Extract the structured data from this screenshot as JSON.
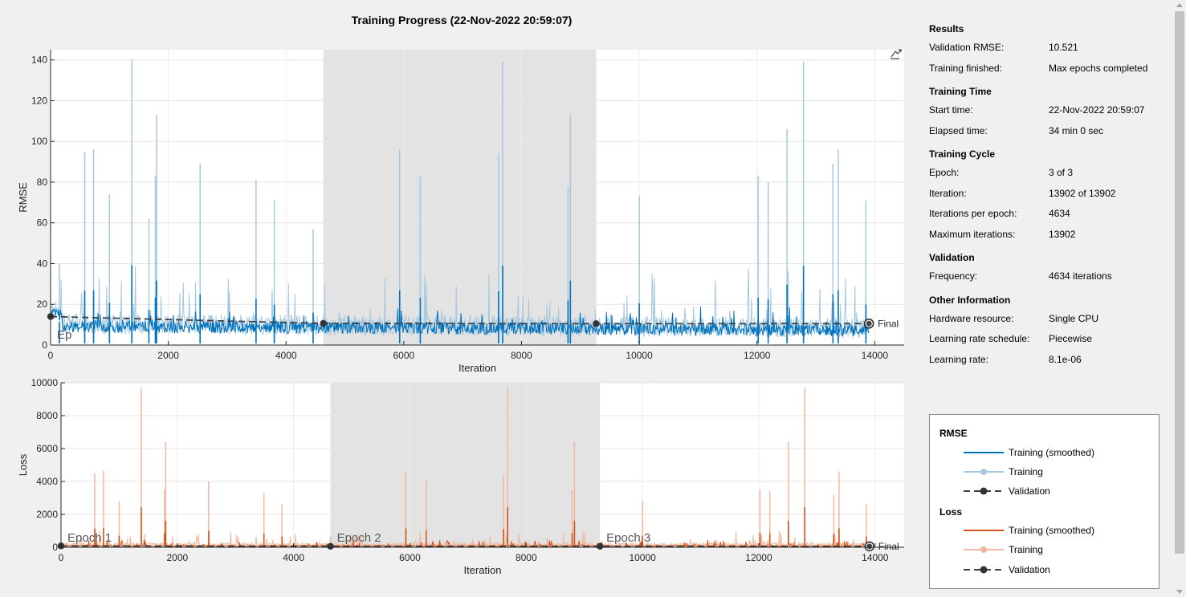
{
  "title": "Training Progress (22-Nov-2022 20:59:07)",
  "results": {
    "heading": "Results",
    "rows": [
      {
        "k": "Validation RMSE:",
        "v": "10.521"
      },
      {
        "k": "Training finished:",
        "v": "Max epochs completed"
      }
    ]
  },
  "training_time": {
    "heading": "Training Time",
    "rows": [
      {
        "k": "Start time:",
        "v": "22-Nov-2022 20:59:07"
      },
      {
        "k": "Elapsed time:",
        "v": "34 min 0 sec"
      }
    ]
  },
  "training_cycle": {
    "heading": "Training Cycle",
    "rows": [
      {
        "k": "Epoch:",
        "v": "3 of 3"
      },
      {
        "k": "Iteration:",
        "v": "13902 of 13902"
      },
      {
        "k": "Iterations per epoch:",
        "v": "4634"
      },
      {
        "k": "Maximum iterations:",
        "v": "13902"
      }
    ]
  },
  "validation": {
    "heading": "Validation",
    "rows": [
      {
        "k": "Frequency:",
        "v": "4634 iterations"
      }
    ]
  },
  "other": {
    "heading": "Other Information",
    "rows": [
      {
        "k": "Hardware resource:",
        "v": "Single CPU"
      },
      {
        "k": "Learning rate schedule:",
        "v": "Piecewise"
      },
      {
        "k": "Learning rate:",
        "v": "8.1e-06"
      }
    ]
  },
  "legend": {
    "rmse_heading": "RMSE",
    "loss_heading": "Loss",
    "rmse_items": [
      "Training (smoothed)",
      "Training",
      "Validation"
    ],
    "loss_items": [
      "Training (smoothed)",
      "Training",
      "Validation"
    ]
  },
  "colors": {
    "rmse_smoothed": "#0072bd",
    "rmse_raw": "#a6c8e0",
    "loss_smoothed": "#d95319",
    "loss_raw": "#f0b9a0",
    "validation": "#404040",
    "epoch_shade": "#e3e3e3"
  },
  "icons": {
    "export": "export-chart-icon"
  },
  "chart_data": [
    {
      "type": "line",
      "name": "rmse",
      "xlabel": "Iteration",
      "ylabel": "RMSE",
      "xlim": [
        0,
        14500
      ],
      "ylim": [
        0,
        145
      ],
      "xticks": [
        0,
        2000,
        4000,
        6000,
        8000,
        10000,
        12000,
        14000
      ],
      "yticks": [
        0,
        20,
        40,
        60,
        80,
        100,
        120,
        140
      ],
      "epoch_boundaries": [
        0,
        4634,
        9268,
        13902
      ],
      "epoch_labels": [
        "Ep",
        "",
        ""
      ],
      "final_label": "Final",
      "validation": {
        "x": [
          0,
          4634,
          9268,
          13902
        ],
        "y": [
          14,
          10.6,
          10.5,
          10.521
        ]
      },
      "spikes": {
        "x": [
          150,
          580,
          730,
          1000,
          1380,
          1780,
          1800,
          1670,
          2540,
          3490,
          3800,
          4460,
          5930,
          6280,
          7610,
          7680,
          8790,
          8830,
          10000,
          12020,
          12190,
          12510,
          12790,
          13290,
          13380,
          13850
        ],
        "y": [
          40,
          95,
          96,
          74,
          140,
          83,
          113,
          62,
          89,
          81,
          71,
          57,
          96,
          83,
          94,
          139,
          78,
          113,
          73,
          83,
          80,
          106,
          139,
          89,
          96,
          71
        ]
      },
      "smoothed_level_mean": 8
    },
    {
      "type": "line",
      "name": "loss",
      "xlabel": "Iteration",
      "ylabel": "Loss",
      "xlim": [
        0,
        14500
      ],
      "ylim": [
        0,
        10000
      ],
      "xticks": [
        0,
        2000,
        4000,
        6000,
        8000,
        10000,
        12000,
        14000
      ],
      "yticks": [
        0,
        2000,
        4000,
        6000,
        8000,
        10000
      ],
      "epoch_boundaries": [
        0,
        4634,
        9268,
        13902
      ],
      "epoch_labels": [
        "Epoch 1",
        "Epoch 2",
        "Epoch 3"
      ],
      "final_label": "Final",
      "validation": {
        "x": [
          0,
          4634,
          9268,
          13902
        ],
        "y": [
          80,
          60,
          60,
          55
        ]
      },
      "spikes": {
        "x": [
          580,
          730,
          1000,
          1380,
          1780,
          1800,
          2540,
          3490,
          3800,
          5930,
          6280,
          7610,
          7680,
          8790,
          8830,
          10000,
          12020,
          12190,
          12510,
          12790,
          13290,
          13380,
          13850
        ],
        "y": [
          4500,
          4650,
          2800,
          9700,
          3500,
          6400,
          4000,
          3300,
          2600,
          4600,
          4100,
          4400,
          9700,
          3500,
          6400,
          2800,
          3500,
          3400,
          6400,
          9700,
          3200,
          4600,
          2600
        ]
      }
    }
  ]
}
